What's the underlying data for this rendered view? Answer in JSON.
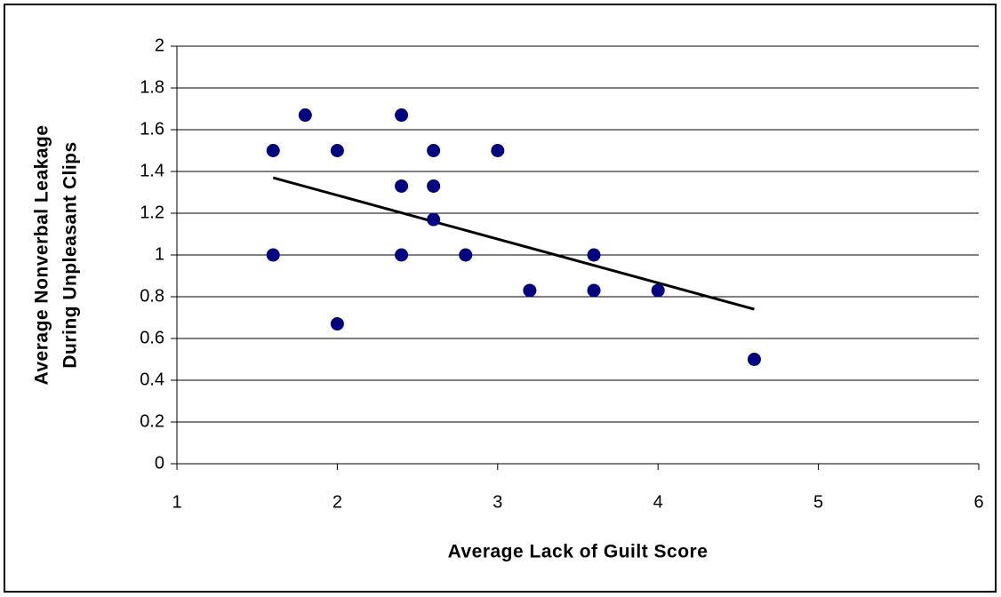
{
  "chart_data": {
    "type": "scatter",
    "xlabel": "Average Lack of Guilt Score",
    "ylabel": [
      "Average Nonverbal Leakage",
      "During Unpleasant Clips"
    ],
    "x": [
      1.6,
      1.8,
      2.0,
      2.0,
      1.6,
      2.4,
      2.4,
      2.4,
      2.6,
      2.6,
      2.6,
      2.8,
      3.0,
      3.2,
      3.6,
      3.6,
      4.0,
      4.6
    ],
    "series": [
      {
        "color": "#000080",
        "values": [
          1.5,
          1.67,
          1.5,
          0.67,
          1.0,
          1.67,
          1.33,
          1.0,
          1.5,
          1.33,
          1.17,
          1.0,
          1.5,
          0.83,
          1.0,
          0.83,
          0.83,
          0.5
        ]
      }
    ],
    "trendline": {
      "x": [
        1.6,
        4.6
      ],
      "y": [
        1.37,
        0.74
      ],
      "color": "#000000"
    },
    "xlim": [
      1,
      6
    ],
    "xticks": [
      1,
      2,
      3,
      4,
      5,
      6
    ],
    "ylim": [
      0,
      2
    ],
    "yticks": [
      0,
      0.2,
      0.4,
      0.6,
      0.8,
      1,
      1.2,
      1.4,
      1.6,
      1.8,
      2
    ],
    "grid": true
  }
}
